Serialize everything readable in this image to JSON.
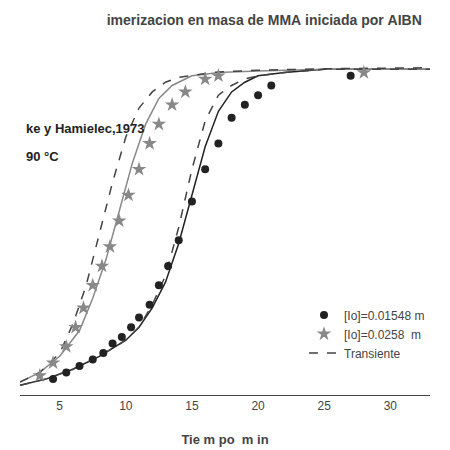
{
  "chart_data": {
    "type": "line",
    "title": "imerizacion en masa de MMA iniciada por AIBN",
    "xlabel": "Tie m po  m in",
    "annotations": [
      "ke y Hamielec,1973",
      "90 °C"
    ],
    "xlim": [
      2,
      33
    ],
    "ylim": [
      -0.02,
      1.05
    ],
    "xticks": [
      5,
      10,
      15,
      20,
      25,
      30
    ],
    "grid": false,
    "legend": "lower right",
    "tick_labels": "x",
    "series": [
      {
        "type": "line",
        "color": "#222222",
        "line_style": "solid",
        "x": [
          2.0,
          4.0,
          6.0,
          8.0,
          10.0,
          11.0,
          12.0,
          13.0,
          14.0,
          15.0,
          16.0,
          17.0,
          18.0,
          19.0,
          20.0,
          22.0,
          25.0,
          33.0
        ],
        "values": [
          0.01,
          0.03,
          0.06,
          0.1,
          0.15,
          0.19,
          0.25,
          0.33,
          0.45,
          0.6,
          0.75,
          0.86,
          0.92,
          0.95,
          0.97,
          0.98,
          0.99,
          0.99
        ]
      },
      {
        "type": "line",
        "color": "#888888",
        "line_style": "solid",
        "x": [
          2.0,
          3.5,
          5.0,
          6.5,
          7.5,
          8.5,
          9.5,
          10.5,
          11.5,
          12.5,
          13.5,
          14.5,
          15.0,
          16.0,
          17.0,
          20.0,
          25.0,
          33.0
        ],
        "values": [
          0.02,
          0.05,
          0.1,
          0.18,
          0.28,
          0.4,
          0.55,
          0.7,
          0.82,
          0.9,
          0.94,
          0.96,
          0.97,
          0.975,
          0.98,
          0.985,
          0.99,
          0.99
        ]
      },
      {
        "type": "line",
        "name": "Transiente",
        "color": "#444444",
        "line_style": "dashed",
        "x": [
          2.0,
          4.0,
          6.0,
          8.0,
          10.0,
          11.0,
          12.0,
          13.0,
          14.0,
          15.0,
          16.0,
          17.0,
          18.0,
          19.0,
          20.0,
          22.0,
          25.0,
          33.0
        ],
        "values": [
          0.01,
          0.03,
          0.06,
          0.1,
          0.15,
          0.19,
          0.26,
          0.35,
          0.5,
          0.68,
          0.83,
          0.91,
          0.94,
          0.96,
          0.97,
          0.98,
          0.99,
          0.99
        ]
      },
      {
        "type": "line",
        "color": "#444444",
        "line_style": "dashed",
        "x": [
          2.0,
          3.5,
          5.0,
          6.0,
          7.0,
          8.0,
          9.0,
          10.0,
          11.0,
          12.0,
          13.0,
          14.0,
          15.0,
          16.0,
          17.0,
          20.0,
          25.0,
          33.0
        ],
        "values": [
          0.02,
          0.05,
          0.11,
          0.2,
          0.32,
          0.48,
          0.64,
          0.78,
          0.87,
          0.92,
          0.95,
          0.965,
          0.972,
          0.977,
          0.982,
          0.987,
          0.992,
          0.995
        ]
      },
      {
        "type": "scatter",
        "name": "[Io]=0.01548 m",
        "color": "#222222",
        "marker": "circle",
        "x": [
          4.5,
          5.5,
          6.5,
          7.5,
          8.3,
          9.0,
          9.7,
          10.4,
          11.0,
          11.8,
          12.5,
          13.2,
          14.0,
          15.0,
          16.0,
          17.0,
          18.0,
          19.0,
          20.0,
          21.0,
          27.0
        ],
        "values": [
          0.03,
          0.05,
          0.07,
          0.09,
          0.11,
          0.14,
          0.16,
          0.19,
          0.22,
          0.26,
          0.32,
          0.38,
          0.46,
          0.58,
          0.68,
          0.76,
          0.84,
          0.88,
          0.91,
          0.94,
          0.97
        ]
      },
      {
        "type": "scatter",
        "name": "[Io]=0.0258  m",
        "color": "#888888",
        "marker": "star",
        "x": [
          3.5,
          4.5,
          5.5,
          6.2,
          6.8,
          7.5,
          8.2,
          8.8,
          9.5,
          10.2,
          11.0,
          11.8,
          12.5,
          13.5,
          14.5,
          16.0,
          17.0,
          28.0
        ],
        "values": [
          0.04,
          0.08,
          0.13,
          0.19,
          0.25,
          0.32,
          0.38,
          0.44,
          0.52,
          0.6,
          0.68,
          0.76,
          0.82,
          0.88,
          0.92,
          0.96,
          0.97,
          0.98
        ]
      }
    ]
  }
}
